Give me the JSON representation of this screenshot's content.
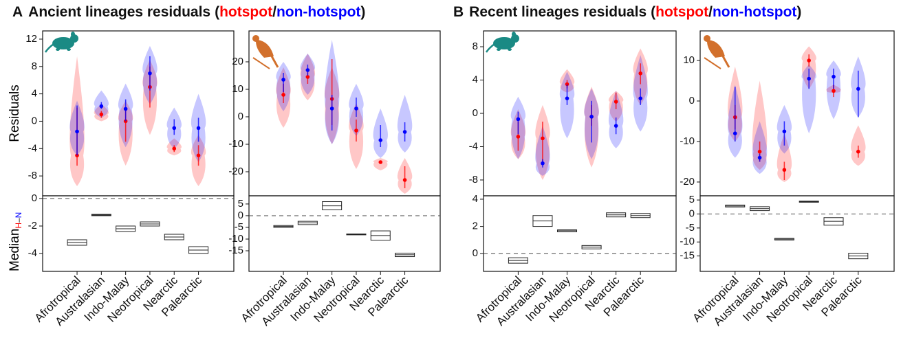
{
  "chart_data": [
    {
      "type": "violin",
      "label": "A",
      "title": "Ancient lineages residuals",
      "title_open": "(",
      "title_sep": "/",
      "title_close": ")",
      "ylabel": "Residuals",
      "diff_ylabel": "Median",
      "diff_sub_h": "H",
      "diff_sub_dash": "–",
      "diff_sub_n": "N",
      "categories": [
        "Afrotropical",
        "Australasian",
        "Indo-Malay",
        "Neotropical",
        "Nearctic",
        "Palearctic"
      ],
      "ylim": [
        -10.9,
        13.2
      ],
      "yticks": [
        -8,
        -4,
        0,
        4,
        8,
        12
      ],
      "series": [
        {
          "name": "hotspot",
          "color": "#ff0000",
          "values": [
            -5,
            1,
            0,
            5,
            -4,
            -5
          ],
          "err_low": [
            -6.5,
            0.5,
            -3,
            2,
            -4.5,
            -6.5
          ],
          "err_high": [
            2,
            1.5,
            2,
            8,
            -3.5,
            -3.5
          ],
          "min": [
            -9.5,
            0,
            -6.5,
            -2,
            -5,
            -9.5
          ],
          "max": [
            9.5,
            2.5,
            3,
            9,
            -2.5,
            -2
          ]
        },
        {
          "name": "non-hotspot",
          "color": "#0000ff",
          "values": [
            -1.5,
            2.2,
            1.8,
            7,
            -1,
            -1
          ],
          "err_low": [
            -5,
            1.8,
            0,
            4.5,
            -2,
            -3
          ],
          "err_high": [
            2.3,
            2.8,
            3.2,
            9.5,
            0.3,
            0.5
          ],
          "min": [
            -5,
            0.5,
            -3.8,
            2.5,
            -4,
            -6
          ],
          "max": [
            3,
            4.5,
            5.5,
            11,
            2,
            4
          ]
        }
      ],
      "diff_ylim": [
        -5.3,
        0.2
      ],
      "diff_yticks": [
        -4,
        -2,
        0
      ],
      "diff_ref": 0,
      "diff_low": [
        -3.4,
        -1.25,
        -2.4,
        -2.0,
        -3.0,
        -4.0
      ],
      "diff_mid": [
        -3.2,
        -1.2,
        -2.2,
        -1.85,
        -2.8,
        -3.75
      ],
      "diff_high": [
        -3.0,
        -1.15,
        -2.0,
        -1.7,
        -2.6,
        -3.5
      ]
    },
    {
      "type": "violin",
      "categories": [
        "Afrotropical",
        "Australasian",
        "Indo-Malay",
        "Neotropical",
        "Nearctic",
        "Palearctic"
      ],
      "ylim": [
        -28.75,
        31.25
      ],
      "yticks": [
        -20,
        -10,
        0,
        10,
        20
      ],
      "series": [
        {
          "name": "hotspot",
          "color": "#ff0000",
          "values": [
            8,
            14.5,
            6.5,
            -5,
            -16.5,
            -23
          ],
          "err_low": [
            5,
            12,
            -3,
            -9,
            -17,
            -26
          ],
          "err_high": [
            12,
            17,
            21,
            -1,
            -16,
            -18
          ],
          "min": [
            -4,
            6,
            -10,
            -19,
            -19.5,
            -28
          ],
          "max": [
            18,
            23,
            18,
            5,
            -15,
            -15
          ]
        },
        {
          "name": "non-hotspot",
          "color": "#0000ff",
          "values": [
            13.5,
            17,
            3,
            3,
            -8.5,
            -5.5
          ],
          "err_low": [
            9,
            15,
            -5,
            0,
            -11,
            -9
          ],
          "err_high": [
            16,
            19,
            8,
            7,
            -3,
            -2
          ],
          "min": [
            2,
            8,
            -10,
            -7,
            -15,
            -13
          ],
          "max": [
            20,
            23,
            28,
            12,
            3,
            8
          ]
        }
      ],
      "diff_ylim": [
        -23.8,
        8.5
      ],
      "diff_yticks": [
        -15,
        -10,
        -5,
        0,
        5
      ],
      "diff_ref": 0,
      "diff_low": [
        -5,
        -3.8,
        2.5,
        -8.2,
        -10.5,
        -17.5
      ],
      "diff_mid": [
        -4.6,
        -3.1,
        4.2,
        -8,
        -8.5,
        -16.7
      ],
      "diff_high": [
        -4.2,
        -2.4,
        6,
        -7.8,
        -6.5,
        -16
      ]
    },
    {
      "type": "violin",
      "label": "B",
      "title": "Recent lineages residuals",
      "title_open": "(",
      "title_sep": "/",
      "title_close": ")",
      "categories": [
        "Afrotropical",
        "Australasian",
        "Indo-Malay",
        "Neotropical",
        "Nearctic",
        "Palearctic"
      ],
      "ylim": [
        -9.9,
        9.9
      ],
      "yticks": [
        -8,
        -4,
        0,
        4,
        8
      ],
      "series": [
        {
          "name": "hotspot",
          "color": "#ff0000",
          "values": [
            -2.8,
            -3,
            3.5,
            -0.4,
            1.4,
            4.8
          ],
          "err_low": [
            -4.5,
            -6,
            3,
            -1.5,
            0.5,
            3.5
          ],
          "err_high": [
            -1,
            -1,
            4,
            1,
            2.5,
            6
          ],
          "min": [
            -5.5,
            -8,
            2.5,
            -6.5,
            -1,
            1
          ],
          "max": [
            0.5,
            1,
            5.3,
            3.2,
            2.7,
            7.8
          ]
        },
        {
          "name": "non-hotspot",
          "color": "#0000ff",
          "values": [
            -0.7,
            -6,
            1.8,
            -0.4,
            -1.5,
            1.8
          ],
          "err_low": [
            -2.5,
            -6.5,
            1,
            -3.5,
            -2.5,
            1
          ],
          "err_high": [
            0.2,
            -5.5,
            3.5,
            1.5,
            -0.5,
            3
          ],
          "min": [
            -5.5,
            -7.5,
            -3,
            -5.5,
            -4.2,
            -2.2
          ],
          "max": [
            2,
            -1.5,
            5,
            3,
            2.7,
            7
          ]
        }
      ],
      "diff_ylim": [
        -1.3,
        4.25
      ],
      "diff_yticks": [
        0,
        2,
        4
      ],
      "diff_ref": 0,
      "diff_low": [
        -0.7,
        2.0,
        1.6,
        0.35,
        2.7,
        2.65
      ],
      "diff_mid": [
        -0.5,
        2.4,
        1.68,
        0.48,
        2.85,
        2.8
      ],
      "diff_high": [
        -0.3,
        2.8,
        1.75,
        0.6,
        3.0,
        2.95
      ]
    },
    {
      "type": "violin",
      "categories": [
        "Afrotropical",
        "Australasian",
        "Indo-Malay",
        "Neotropical",
        "Nearctic",
        "Palearctic"
      ],
      "ylim": [
        -23.4,
        17.3
      ],
      "yticks": [
        -20,
        -10,
        0,
        10
      ],
      "series": [
        {
          "name": "hotspot",
          "color": "#ff0000",
          "values": [
            -4,
            -12.5,
            -17,
            10,
            2.5,
            -12.5
          ],
          "err_low": [
            -7,
            -15,
            -19.5,
            8.5,
            1,
            -14
          ],
          "err_high": [
            -1,
            -10,
            -15,
            11.5,
            4,
            -11
          ],
          "min": [
            -10,
            -17,
            -20,
            3,
            2,
            -16
          ],
          "max": [
            8.5,
            5,
            -8,
            13.5,
            4,
            -6
          ]
        },
        {
          "name": "non-hotspot",
          "color": "#0000ff",
          "values": [
            -8,
            -14,
            -7.5,
            5.5,
            6,
            3
          ],
          "err_low": [
            -10,
            -15,
            -11,
            3,
            3,
            -4
          ],
          "err_high": [
            3.5,
            -13,
            -5,
            8,
            8,
            7.5
          ],
          "min": [
            -14,
            -18,
            -13,
            -8,
            -4.5,
            -4
          ],
          "max": [
            4,
            -5,
            -1,
            9,
            10,
            11
          ]
        }
      ],
      "diff_ylim": [
        -20.5,
        6.5
      ],
      "diff_yticks": [
        -15,
        -10,
        -5,
        0,
        5
      ],
      "diff_ref": 0,
      "diff_low": [
        2.5,
        1.2,
        -9.3,
        4.2,
        -4,
        -16
      ],
      "diff_mid": [
        2.85,
        1.9,
        -9,
        4.4,
        -2.6,
        -15
      ],
      "diff_high": [
        3.2,
        2.6,
        -8.7,
        4.6,
        -1.3,
        -14
      ]
    }
  ]
}
